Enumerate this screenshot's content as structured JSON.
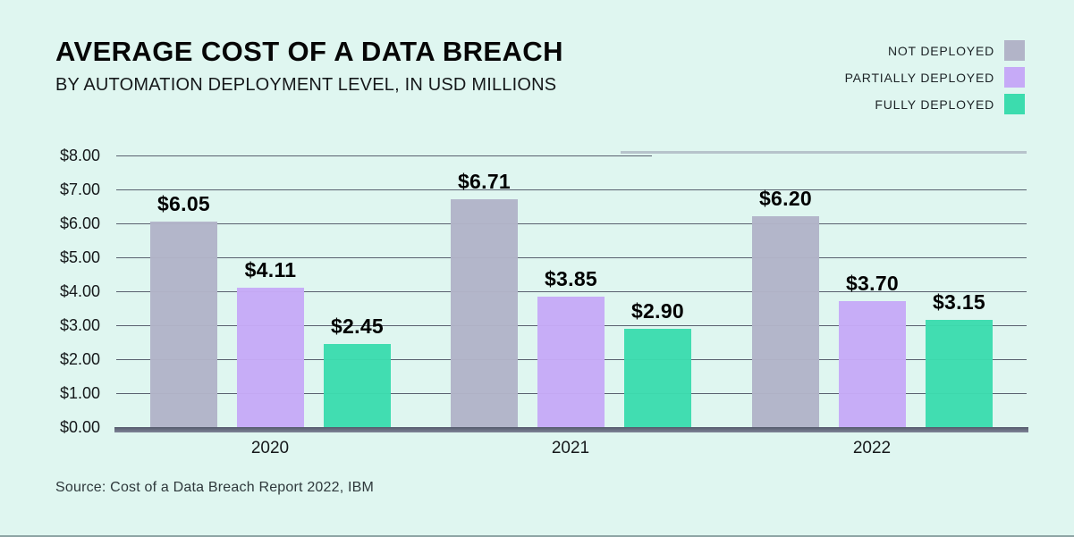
{
  "header": {
    "title": "AVERAGE COST OF A DATA BREACH",
    "subtitle": "BY AUTOMATION DEPLOYMENT LEVEL, IN USD MILLIONS"
  },
  "legend": {
    "items": [
      {
        "label": "NOT DEPLOYED",
        "color": "#b2b4c8"
      },
      {
        "label": "PARTIALLY DEPLOYED",
        "color": "#c6aaf7"
      },
      {
        "label": "FULLY DEPLOYED",
        "color": "#3cdcae"
      }
    ]
  },
  "chart_data": {
    "type": "bar",
    "title": "AVERAGE COST OF A DATA BREACH",
    "subtitle": "BY AUTOMATION DEPLOYMENT LEVEL, IN USD MILLIONS",
    "categories": [
      "2020",
      "2021",
      "2022"
    ],
    "series": [
      {
        "name": "NOT DEPLOYED",
        "color": "#b2b4c8",
        "values": [
          6.05,
          6.71,
          6.2
        ],
        "labels": [
          "$6.05",
          "$6.71",
          "$6.20"
        ]
      },
      {
        "name": "PARTIALLY DEPLOYED",
        "color": "#c6aaf7",
        "values": [
          4.11,
          3.85,
          3.7
        ],
        "labels": [
          "$4.11",
          "$3.85",
          "$3.70"
        ]
      },
      {
        "name": "FULLY DEPLOYED",
        "color": "#3cdcae",
        "values": [
          2.45,
          2.9,
          3.15
        ],
        "labels": [
          "$2.45",
          "$2.90",
          "$3.15"
        ]
      }
    ],
    "xlabel": "",
    "ylabel": "",
    "ylim": [
      0,
      8
    ],
    "ytick_step": 1,
    "yticks": [
      "$8.00",
      "$7.00",
      "$6.00",
      "$5.00",
      "$4.00",
      "$3.00",
      "$2.00",
      "$1.00",
      "$0.00"
    ],
    "grid": true,
    "gridline_color": "#59606f",
    "background_color": "#dff6f0",
    "legend_position": "top-right"
  },
  "footer": {
    "source": "Source: Cost of a Data Breach Report 2022, IBM"
  }
}
